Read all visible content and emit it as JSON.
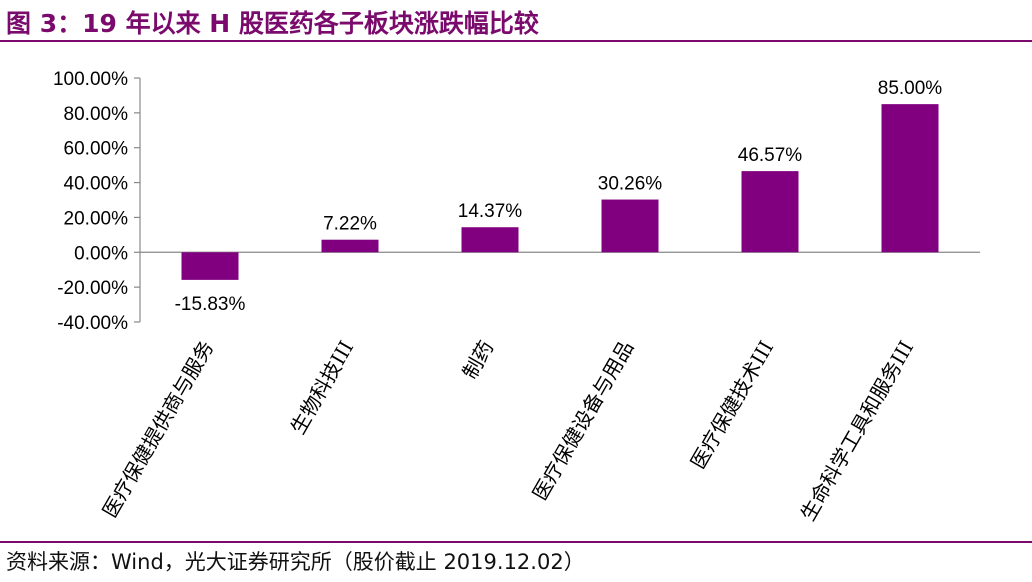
{
  "title": "图 3：19 年以来 H 股医药各子板块涨跌幅比较",
  "source": "资料来源：Wind，光大证券研究所（股价截止 2019.12.02）",
  "colors": {
    "accent": "#7a0a6c",
    "bar": "#800080"
  },
  "chart_data": {
    "type": "bar",
    "categories": [
      "医疗保健提供商与服务",
      "生物科技III",
      "制药",
      "医疗保健设备与用品",
      "医疗保健技术III",
      "生命科学工具和服务III"
    ],
    "values": [
      -15.83,
      7.22,
      14.37,
      30.26,
      46.57,
      85.0
    ],
    "value_labels": [
      "-15.83%",
      "7.22%",
      "14.37%",
      "30.26%",
      "46.57%",
      "85.00%"
    ],
    "yticks": [
      100,
      80,
      60,
      40,
      20,
      0,
      -20,
      -40
    ],
    "ytick_labels": [
      "100.00%",
      "80.00%",
      "60.00%",
      "40.00%",
      "20.00%",
      "0.00%",
      "-20.00%",
      "-40.00%"
    ],
    "ylim": [
      -40,
      100
    ],
    "grid": false,
    "legend": "none",
    "title": "",
    "xlabel": "",
    "ylabel": ""
  }
}
